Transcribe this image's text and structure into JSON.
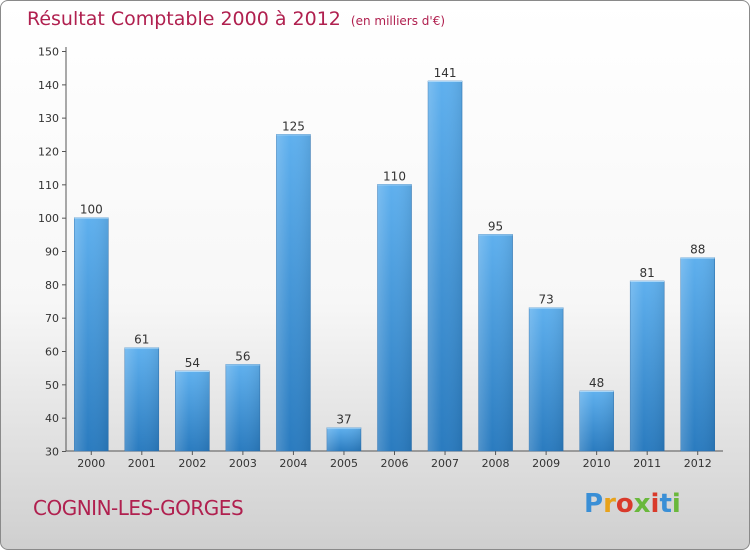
{
  "title": "Résultat Comptable 2000 à 2012",
  "subtitle": "(en milliers d'€)",
  "city": "COGNIN-LES-GORGES",
  "logo_text": "Proxiti",
  "colors": {
    "title": "#b0204f",
    "bar_light": "#5fb0ee",
    "bar_dark": "#2a7bbf"
  },
  "chart_data": {
    "type": "bar",
    "title": "Résultat Comptable 2000 à 2012",
    "subtitle": "(en milliers d'€)",
    "xlabel": "",
    "ylabel": "",
    "categories": [
      "2000",
      "2001",
      "2002",
      "2003",
      "2004",
      "2005",
      "2006",
      "2007",
      "2008",
      "2009",
      "2010",
      "2011",
      "2012"
    ],
    "values": [
      100,
      61,
      54,
      56,
      125,
      37,
      110,
      141,
      95,
      73,
      48,
      81,
      88
    ],
    "ylim": [
      30,
      150
    ],
    "yticks": [
      30,
      40,
      50,
      60,
      70,
      80,
      90,
      100,
      110,
      120,
      130,
      140,
      150
    ],
    "grid": false,
    "legend": "none"
  }
}
